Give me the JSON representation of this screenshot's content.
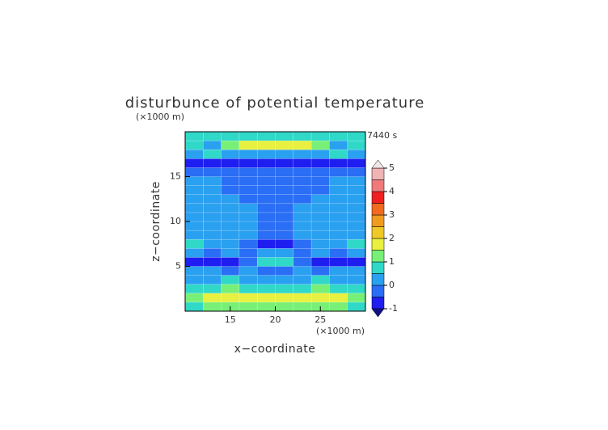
{
  "chart_data": {
    "type": "contour",
    "title": "disturbunce of potential temperature",
    "x_label": "x−coordinate",
    "y_label": "z−coordinate",
    "x_unit": "(×1000 m)",
    "y_unit": "(×1000 m)",
    "time_label": "7440 s",
    "xlim": [
      10,
      30
    ],
    "ylim": [
      0,
      20
    ],
    "xticks": [
      15,
      20,
      25
    ],
    "yticks": [
      5,
      10,
      15
    ],
    "x": [
      11,
      13,
      15,
      17,
      19,
      21,
      23,
      25,
      27,
      29
    ],
    "y": [
      0.5,
      1.5,
      2.5,
      3.5,
      4.5,
      5.5,
      6.5,
      7.5,
      8.5,
      9.5,
      10.5,
      11.5,
      12.5,
      13.5,
      14.5,
      15.5,
      16.5,
      17.5,
      18.5,
      19.5
    ],
    "z": [
      [
        0.8,
        1,
        1.2,
        1.3,
        1.4,
        1.4,
        1.3,
        1.2,
        1,
        0.8
      ],
      [
        1.2,
        1.5,
        1.6,
        1.8,
        1.8,
        1.8,
        1.8,
        1.6,
        1.5,
        1.2
      ],
      [
        0.6,
        0.8,
        1,
        0.7,
        0.5,
        0.5,
        0.7,
        1,
        0.8,
        0.6
      ],
      [
        0.2,
        0.1,
        0.6,
        0.3,
        0.1,
        0.1,
        0.3,
        0.6,
        0.1,
        0.2
      ],
      [
        0.1,
        0.3,
        -0.2,
        0.2,
        -0.3,
        -0.3,
        0.2,
        -0.2,
        0.3,
        0.1
      ],
      [
        -0.8,
        -0.8,
        -0.6,
        -0.3,
        0.6,
        0.6,
        -0.3,
        -0.6,
        -0.8,
        -0.8
      ],
      [
        0.2,
        -0.3,
        0.3,
        -0.4,
        0.2,
        0.2,
        -0.4,
        0.3,
        -0.3,
        0.2
      ],
      [
        0.7,
        0.3,
        0.2,
        -0.2,
        -0.6,
        -0.6,
        -0.2,
        0.2,
        0.3,
        0.7
      ],
      [
        0.3,
        0.2,
        0.1,
        0.1,
        -0.2,
        -0.2,
        0.1,
        0.1,
        0.2,
        0.3
      ],
      [
        0.2,
        0.2,
        0.2,
        0.1,
        -0.2,
        -0.2,
        0.1,
        0.2,
        0.2,
        0.2
      ],
      [
        0.2,
        0.2,
        0.2,
        0.1,
        -0.2,
        -0.2,
        0.1,
        0.2,
        0.2,
        0.2
      ],
      [
        0.2,
        0.2,
        0.2,
        0.1,
        -0.2,
        -0.2,
        0.1,
        0.2,
        0.2,
        0.2
      ],
      [
        0.2,
        0.2,
        0.2,
        -0.1,
        -0.2,
        -0.2,
        -0.1,
        0.2,
        0.2,
        0.2
      ],
      [
        0.2,
        0.2,
        -0.2,
        -0.2,
        -0.2,
        -0.2,
        -0.2,
        -0.2,
        0.2,
        0.2
      ],
      [
        0.1,
        0.1,
        -0.2,
        -0.3,
        -0.3,
        -0.3,
        -0.3,
        -0.2,
        0.1,
        0.1
      ],
      [
        -0.3,
        -0.3,
        -0.3,
        -0.3,
        -0.3,
        -0.3,
        -0.3,
        -0.3,
        -0.3,
        -0.3
      ],
      [
        -0.8,
        -0.8,
        -0.8,
        -0.8,
        -0.8,
        -0.8,
        -0.8,
        -0.8,
        -0.8,
        -0.8
      ],
      [
        0.3,
        0.6,
        0.3,
        0.1,
        0.1,
        0.1,
        0.1,
        0.3,
        0.6,
        0.3
      ],
      [
        0.7,
        0.4,
        1,
        1.6,
        1.7,
        1.7,
        1.6,
        1,
        0.4,
        0.7
      ],
      [
        0.7,
        0.7,
        0.8,
        0.8,
        0.7,
        0.7,
        0.8,
        0.8,
        0.7,
        0.7
      ]
    ],
    "colorbar": {
      "levels": [
        -1,
        -0.5,
        0,
        0.5,
        1,
        1.5,
        2,
        2.5,
        3,
        3.5,
        4,
        4.5,
        5
      ],
      "colors": [
        "#1e1ef0",
        "#2a6ef5",
        "#2aa0f0",
        "#30d8c8",
        "#78f078",
        "#e8f040",
        "#f0c828",
        "#f09a20",
        "#f06a20",
        "#f02020",
        "#f07a7a",
        "#f0b4b4"
      ],
      "under_color": "#10108a",
      "over_color": "#f4e6e6",
      "ticks": [
        -1,
        0,
        1,
        2,
        3,
        4,
        5
      ]
    }
  }
}
